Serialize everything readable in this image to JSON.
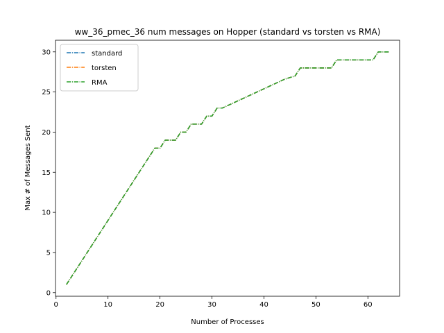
{
  "chart_data": {
    "type": "line",
    "title": "ww_36_pmec_36 num messages on Hopper (standard vs torsten vs RMA)",
    "xlabel": "Number of Processes",
    "ylabel": "Max # of Messages Sent",
    "xlim": [
      -0.1,
      66.1
    ],
    "ylim": [
      -0.45,
      31.45
    ],
    "xticks": [
      0,
      10,
      20,
      30,
      40,
      50,
      60
    ],
    "yticks": [
      0,
      5,
      10,
      15,
      20,
      25,
      30
    ],
    "grid": false,
    "legend_position": "top-left",
    "line_style": "dash-dot",
    "x": [
      2,
      3,
      4,
      5,
      6,
      7,
      8,
      9,
      10,
      11,
      12,
      13,
      14,
      15,
      16,
      17,
      18,
      19,
      20,
      21,
      22,
      23,
      24,
      25,
      26,
      27,
      28,
      29,
      30,
      31,
      32,
      33,
      34,
      35,
      36,
      37,
      38,
      39,
      40,
      41,
      42,
      43,
      44,
      45,
      46,
      47,
      48,
      49,
      50,
      51,
      52,
      53,
      54,
      55,
      56,
      57,
      58,
      59,
      60,
      61,
      62,
      63,
      64
    ],
    "series": [
      {
        "name": "standard",
        "color": "#1f77b4",
        "values": [
          1,
          2,
          3,
          4,
          5,
          6,
          7,
          8,
          9,
          10,
          11,
          12,
          13,
          14,
          15,
          16,
          17,
          18,
          18,
          19,
          19,
          19,
          20,
          20,
          21,
          21,
          21,
          22,
          22,
          23,
          23,
          23.3,
          23.6,
          23.9,
          24.2,
          24.5,
          24.8,
          25.1,
          25.4,
          25.7,
          26,
          26.3,
          26.6,
          26.8,
          27,
          28,
          28,
          28,
          28,
          28,
          28,
          28,
          29,
          29,
          29,
          29,
          29,
          29,
          29,
          29,
          30,
          30,
          30
        ]
      },
      {
        "name": "torsten",
        "color": "#ff7f0e",
        "values": [
          1,
          2,
          3,
          4,
          5,
          6,
          7,
          8,
          9,
          10,
          11,
          12,
          13,
          14,
          15,
          16,
          17,
          18,
          18,
          19,
          19,
          19,
          20,
          20,
          21,
          21,
          21,
          22,
          22,
          23,
          23,
          23.3,
          23.6,
          23.9,
          24.2,
          24.5,
          24.8,
          25.1,
          25.4,
          25.7,
          26,
          26.3,
          26.6,
          26.8,
          27,
          28,
          28,
          28,
          28,
          28,
          28,
          28,
          29,
          29,
          29,
          29,
          29,
          29,
          29,
          29,
          30,
          30,
          30
        ]
      },
      {
        "name": "RMA",
        "color": "#2ca02c",
        "values": [
          1,
          2,
          3,
          4,
          5,
          6,
          7,
          8,
          9,
          10,
          11,
          12,
          13,
          14,
          15,
          16,
          17,
          18,
          18,
          19,
          19,
          19,
          20,
          20,
          21,
          21,
          21,
          22,
          22,
          23,
          23,
          23.3,
          23.6,
          23.9,
          24.2,
          24.5,
          24.8,
          25.1,
          25.4,
          25.7,
          26,
          26.3,
          26.6,
          26.8,
          27,
          28,
          28,
          28,
          28,
          28,
          28,
          28,
          29,
          29,
          29,
          29,
          29,
          29,
          29,
          29,
          30,
          30,
          30
        ]
      }
    ]
  }
}
